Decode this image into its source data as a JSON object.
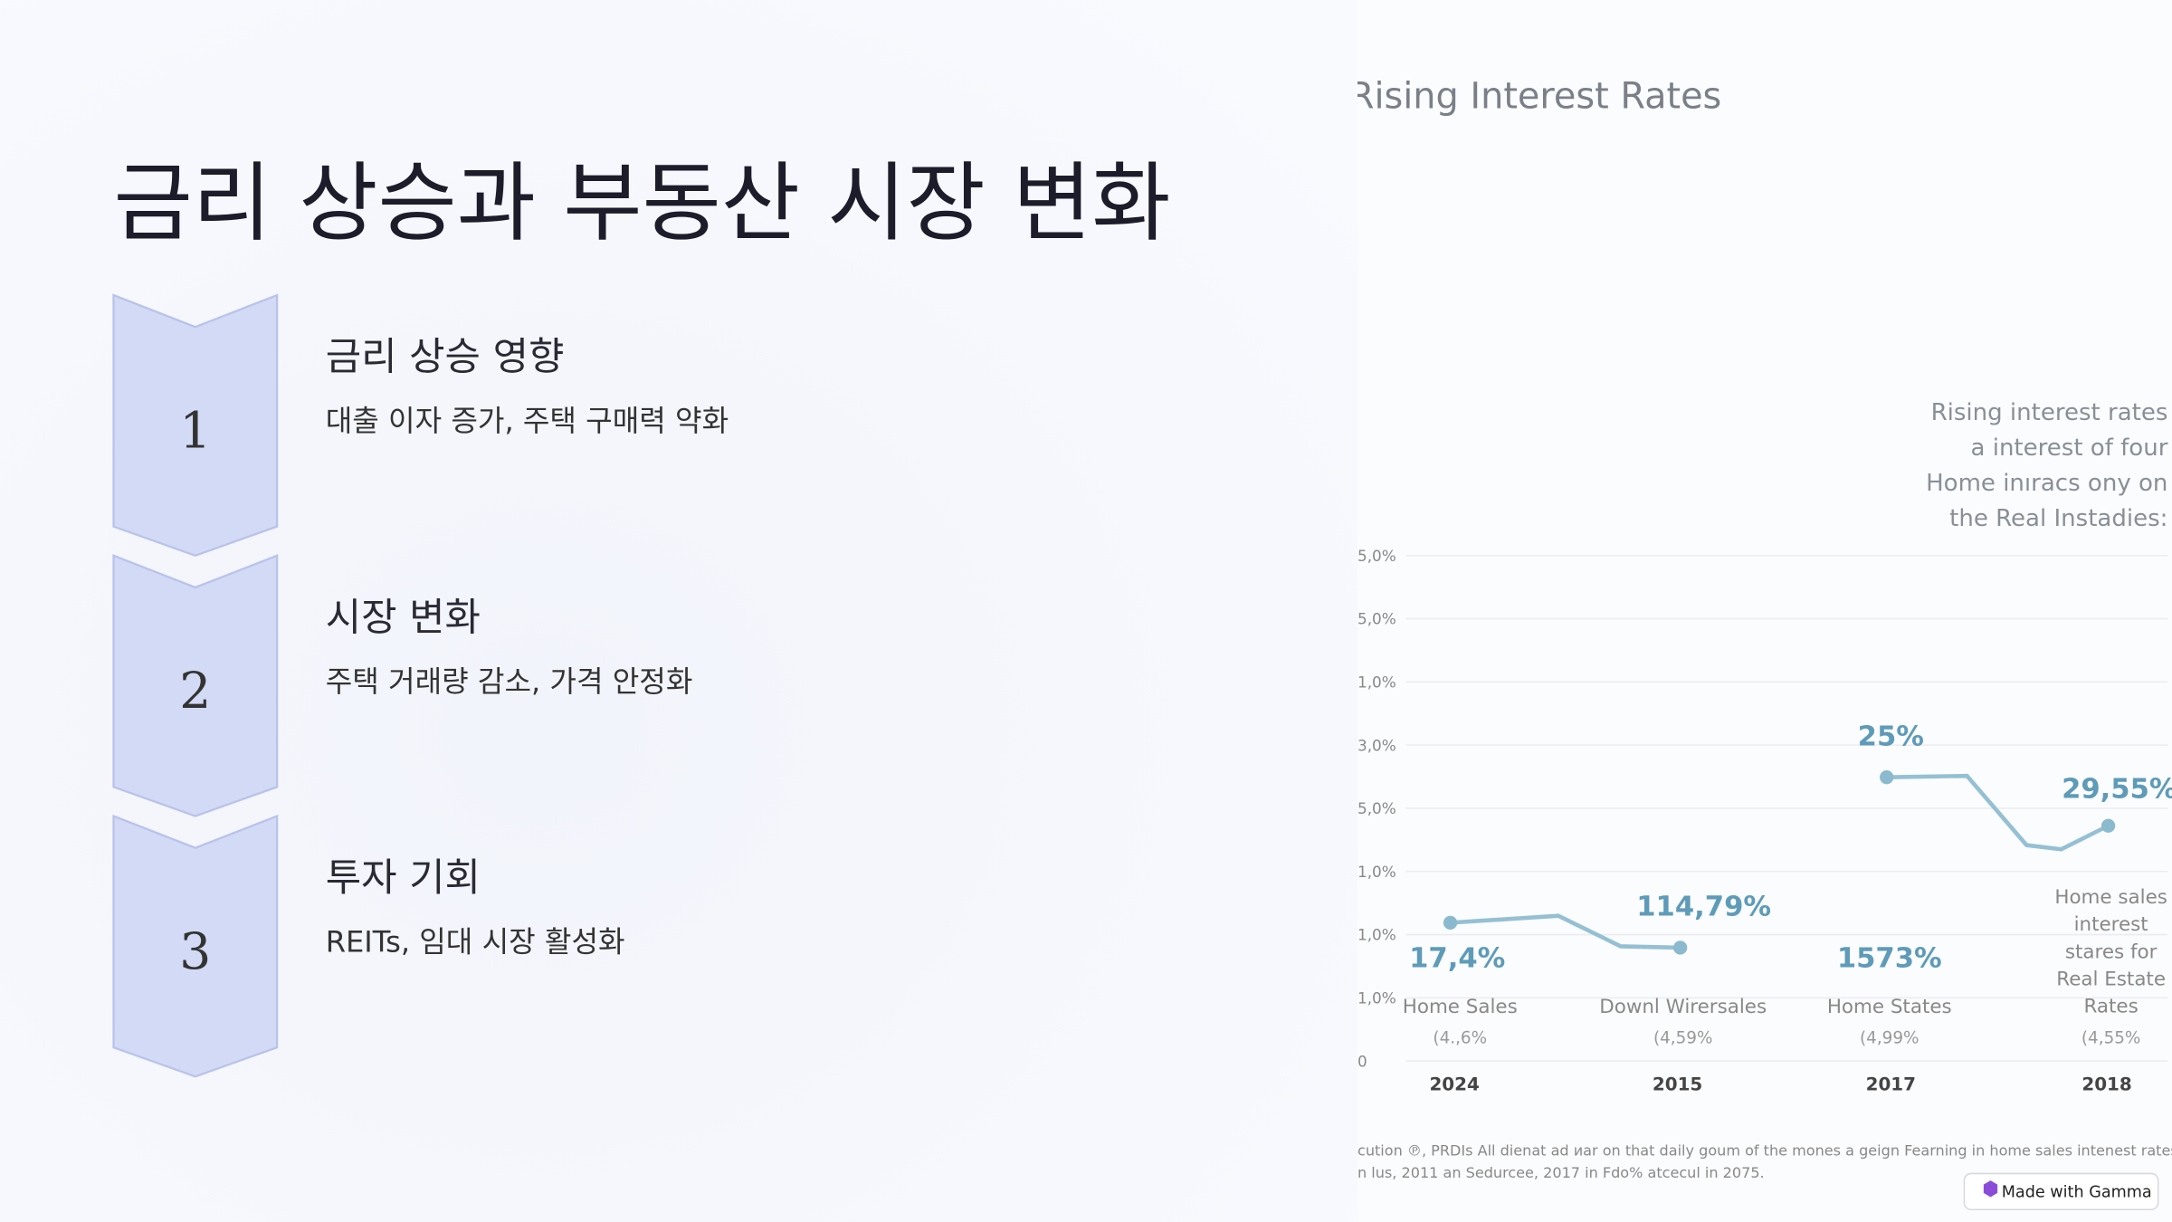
{
  "slide": {
    "title": "금리 상승과 부동산 시장 변화",
    "steps": [
      {
        "number": "1",
        "heading": "금리 상승 영향",
        "text": "대출 이자 증가, 주택 구매력 약화"
      },
      {
        "number": "2",
        "heading": "시장 변화",
        "text": "주택 거래량 감소, 가격 안정화"
      },
      {
        "number": "3",
        "heading": "투자 기회",
        "text": "REITs, 임대 시장 활성화"
      }
    ]
  },
  "image": {
    "title": "Rising Interest Rates",
    "note": [
      "Rising interest rates",
      "a interest of four",
      "Home inıracs ony on",
      "the Real Instadies:"
    ],
    "axis_labels": [
      "5,0%",
      "5,0%",
      "1,0%",
      "3,0%",
      "5,0%",
      "1,0%",
      "1,0%",
      "1,0%",
      "0"
    ],
    "point_labels": [
      "17,4%",
      "114,79%",
      "25%",
      "1573%",
      "29,55%"
    ],
    "categories": [
      "Home Sales",
      "Downl Wirersales",
      "Home States"
    ],
    "last_category": [
      "Home sales",
      "interest",
      "stares for",
      "Real Estate",
      "Rates"
    ],
    "sublabels": [
      "(4.,6%",
      "(4,59%",
      "(4,99%",
      "(4,55%"
    ],
    "years": [
      "2024",
      "2015",
      "2017",
      "2018"
    ],
    "caption": [
      "cution ℗, PRDIs All dienat ad иаr on that daily goum of the mones a geign Fearning in home sales intenest rates",
      "n lus, 2011 an Sedurcee, 2017 in Fdo% atcecul in 2075."
    ]
  },
  "badge": "Made with Gamma"
}
